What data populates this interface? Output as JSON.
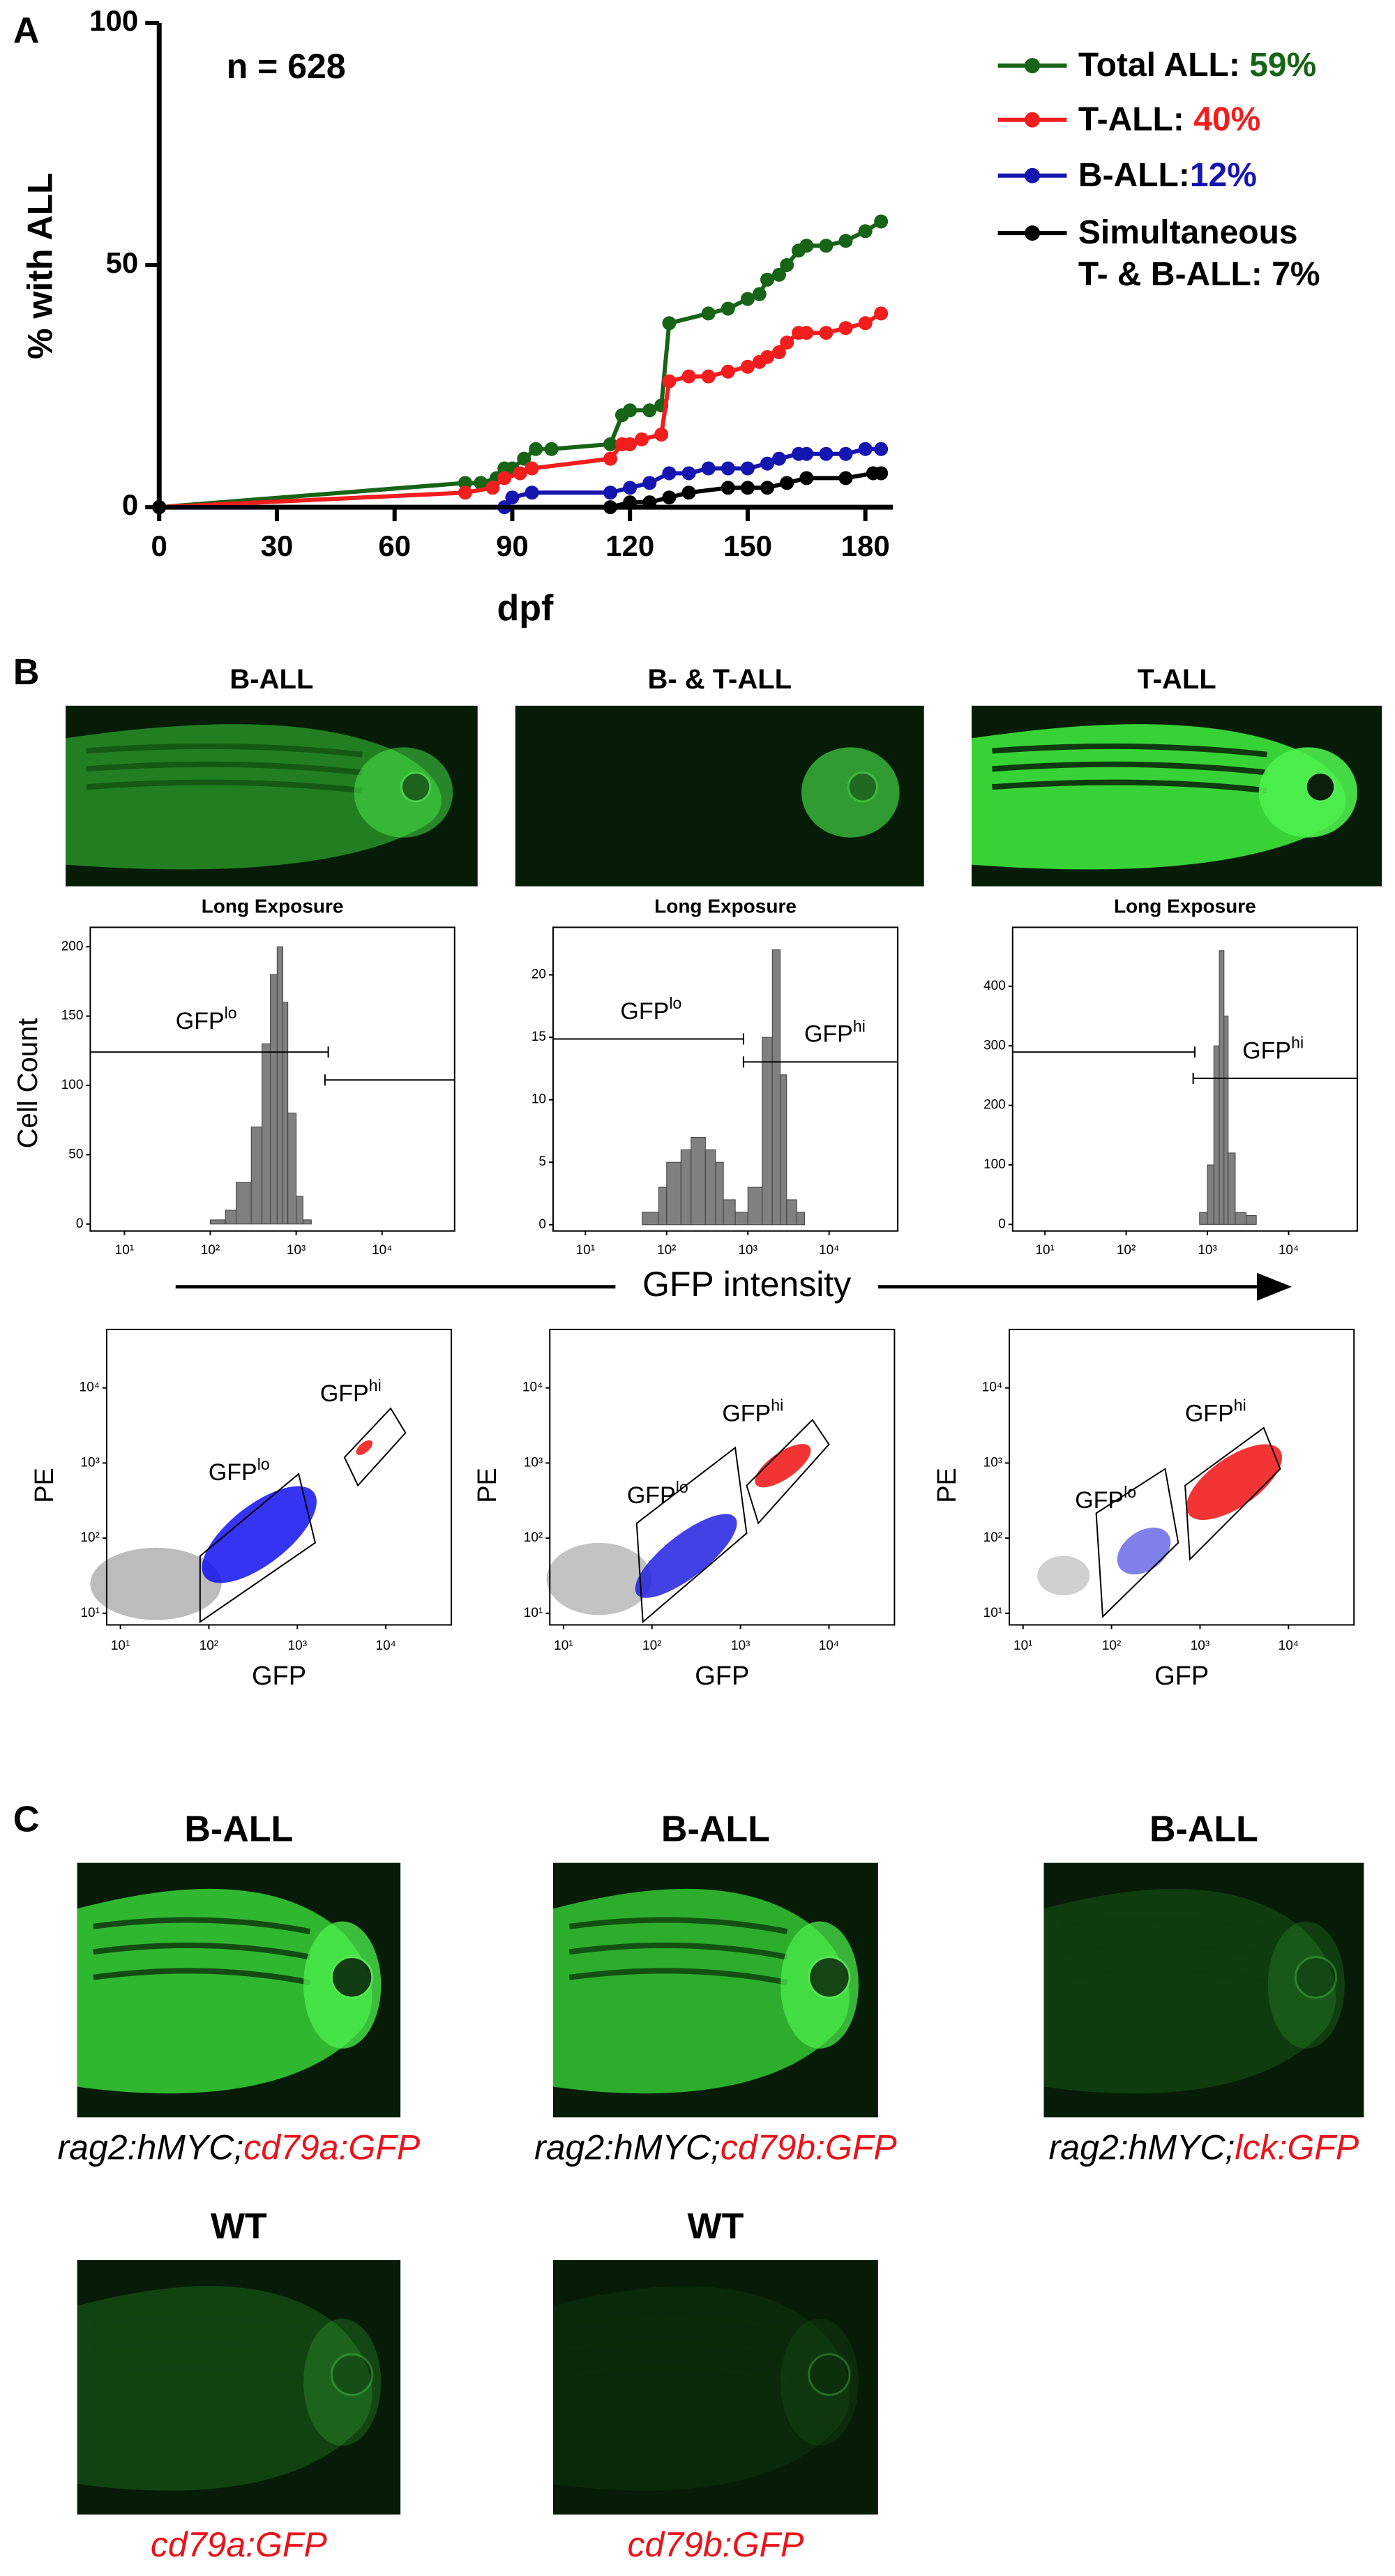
{
  "panel_labels": [
    "A",
    "B",
    "C"
  ],
  "chart_data": [
    {
      "type": "line",
      "annotation": "n = 628",
      "xlabel": "dpf",
      "ylabel": "% with ALL",
      "xlim": [
        0,
        187
      ],
      "xticks": [
        0,
        30,
        60,
        90,
        120,
        150,
        180
      ],
      "ylim": [
        0,
        100
      ],
      "yticks": [
        0,
        50,
        100
      ],
      "series": [
        {
          "name": "Total ALL:",
          "legend_value": "59%",
          "color": "#176417",
          "x": [
            0,
            78,
            82,
            86,
            88,
            90,
            93,
            96,
            100,
            115,
            118,
            120,
            125,
            128,
            130,
            140,
            145,
            150,
            153,
            155,
            158,
            160,
            163,
            165,
            170,
            175,
            180,
            184
          ],
          "values": [
            0,
            5,
            5,
            6,
            8,
            8,
            10,
            12,
            12,
            13,
            19,
            20,
            20,
            21,
            38,
            40,
            41,
            43,
            44,
            47,
            48,
            50,
            53,
            54,
            54,
            55,
            57,
            59
          ]
        },
        {
          "name": "T-ALL:",
          "legend_value": "40%",
          "color": "#f21d1d",
          "x": [
            0,
            78,
            85,
            88,
            92,
            95,
            115,
            118,
            120,
            123,
            128,
            130,
            135,
            140,
            145,
            150,
            153,
            155,
            158,
            160,
            163,
            165,
            170,
            175,
            180,
            184
          ],
          "values": [
            0,
            3,
            4,
            6,
            7,
            8,
            10,
            13,
            13,
            14,
            15,
            26,
            27,
            27,
            28,
            29,
            30,
            31,
            32,
            34,
            36,
            36,
            36,
            37,
            38,
            40
          ]
        },
        {
          "name": "B-ALL:",
          "legend_value": "12%",
          "color": "#1515b0",
          "x": [
            0,
            88,
            90,
            95,
            115,
            120,
            125,
            130,
            135,
            140,
            145,
            150,
            155,
            158,
            163,
            165,
            170,
            175,
            180,
            184
          ],
          "values": [
            0,
            0,
            2,
            3,
            3,
            4,
            5,
            7,
            7,
            8,
            8,
            8,
            9,
            10,
            11,
            11,
            11,
            11,
            12,
            12
          ]
        },
        {
          "name": "Simultaneous T- & B-ALL:",
          "legend_value": "7%",
          "color": "#000000",
          "x": [
            0,
            115,
            120,
            125,
            130,
            135,
            145,
            150,
            155,
            160,
            165,
            175,
            182,
            184
          ],
          "values": [
            0,
            0,
            1,
            1,
            2,
            3,
            4,
            4,
            4,
            5,
            6,
            6,
            7,
            7
          ]
        }
      ]
    },
    {
      "type": "histogram",
      "title": "Long Exposure",
      "ylabel": "Cell Count",
      "color": "#808080",
      "xscale": "log",
      "bins": [
        100,
        150,
        200,
        300,
        400,
        500,
        600,
        700,
        800,
        1000,
        1200,
        1500
      ],
      "values": [
        3,
        10,
        30,
        70,
        130,
        180,
        200,
        160,
        80,
        20,
        3
      ],
      "xlim": [
        4,
        70000
      ],
      "xticks": [
        {
          "value": 10,
          "label": "10¹"
        },
        {
          "value": 100,
          "label": "10²"
        },
        {
          "value": 1000,
          "label": "10³"
        },
        {
          "value": 10000,
          "label": "10⁴"
        }
      ],
      "ylim": [
        -5,
        214
      ],
      "yticks": [
        0,
        50,
        100,
        150,
        200
      ],
      "gates": [
        {
          "base": "GFP",
          "sup": "lo"
        }
      ]
    },
    {
      "type": "histogram",
      "title": "Long Exposure",
      "color": "#808080",
      "xscale": "log",
      "bins": [
        50,
        80,
        100,
        150,
        200,
        300,
        400,
        500,
        700,
        1000,
        1500,
        2000,
        2500,
        3000,
        4000,
        5000
      ],
      "values": [
        1,
        3,
        5,
        6,
        7,
        6,
        5,
        2,
        1,
        3,
        15,
        22,
        12,
        2,
        1
      ],
      "xlim": [
        4,
        70000
      ],
      "xticks": [
        {
          "value": 10,
          "label": "10¹"
        },
        {
          "value": 100,
          "label": "10²"
        },
        {
          "value": 1000,
          "label": "10³"
        },
        {
          "value": 10000,
          "label": "10⁴"
        }
      ],
      "ylim": [
        -0.5,
        23.8
      ],
      "yticks": [
        0,
        5,
        10,
        15,
        20
      ],
      "gates": [
        {
          "base": "GFP",
          "sup": "lo"
        },
        {
          "base": "GFP",
          "sup": "hi"
        }
      ]
    },
    {
      "type": "histogram",
      "title": "Long Exposure",
      "color": "#808080",
      "xscale": "log",
      "bins": [
        800,
        1000,
        1200,
        1400,
        1600,
        1800,
        2200,
        3000,
        4000
      ],
      "values": [
        20,
        100,
        300,
        460,
        350,
        120,
        20,
        15
      ],
      "xlim": [
        4,
        70000
      ],
      "xticks": [
        {
          "value": 10,
          "label": "10¹"
        },
        {
          "value": 100,
          "label": "10²"
        },
        {
          "value": 1000,
          "label": "10³"
        },
        {
          "value": 10000,
          "label": "10⁴"
        }
      ],
      "ylim": [
        -11,
        499
      ],
      "yticks": [
        0,
        100,
        200,
        300,
        400
      ],
      "gates": [
        {
          "base": "GFP",
          "sup": "hi"
        }
      ]
    },
    {
      "type": "scatter",
      "xlabel": "GFP",
      "ylabel": "PE",
      "xscale": "log",
      "yscale": "log",
      "xlim": [
        7,
        55000
      ],
      "ylim": [
        7,
        60000
      ],
      "xticks": [
        {
          "value": 10,
          "label": "10¹"
        },
        {
          "value": 100,
          "label": "10²"
        },
        {
          "value": 1000,
          "label": "10³"
        },
        {
          "value": 10000,
          "label": "10⁴"
        }
      ],
      "yticks": [
        {
          "value": 10,
          "label": "10¹"
        },
        {
          "value": 100,
          "label": "10²"
        },
        {
          "value": 1000,
          "label": "10³"
        },
        {
          "value": 10000,
          "label": "10⁴"
        }
      ],
      "gates": [
        {
          "base": "GFP",
          "sup": "lo"
        },
        {
          "base": "GFP",
          "sup": "hi"
        }
      ]
    },
    {
      "type": "scatter",
      "xlabel": "GFP",
      "ylabel": "PE",
      "xscale": "log",
      "yscale": "log",
      "xlim": [
        7,
        55000
      ],
      "ylim": [
        7,
        60000
      ],
      "xticks": [
        {
          "value": 10,
          "label": "10¹"
        },
        {
          "value": 100,
          "label": "10²"
        },
        {
          "value": 1000,
          "label": "10³"
        },
        {
          "value": 10000,
          "label": "10⁴"
        }
      ],
      "yticks": [
        {
          "value": 10,
          "label": "10¹"
        },
        {
          "value": 100,
          "label": "10²"
        },
        {
          "value": 1000,
          "label": "10³"
        },
        {
          "value": 10000,
          "label": "10⁴"
        }
      ],
      "gates": [
        {
          "base": "GFP",
          "sup": "lo"
        },
        {
          "base": "GFP",
          "sup": "hi"
        }
      ]
    },
    {
      "type": "scatter",
      "xlabel": "GFP",
      "ylabel": "PE",
      "xscale": "log",
      "yscale": "log",
      "xlim": [
        7,
        55000
      ],
      "ylim": [
        7,
        60000
      ],
      "xticks": [
        {
          "value": 10,
          "label": "10¹"
        },
        {
          "value": 100,
          "label": "10²"
        },
        {
          "value": 1000,
          "label": "10³"
        },
        {
          "value": 10000,
          "label": "10⁴"
        }
      ],
      "yticks": [
        {
          "value": 10,
          "label": "10¹"
        },
        {
          "value": 100,
          "label": "10²"
        },
        {
          "value": 1000,
          "label": "10³"
        },
        {
          "value": 10000,
          "label": "10⁴"
        }
      ],
      "gates": [
        {
          "base": "GFP",
          "sup": "lo"
        },
        {
          "base": "GFP",
          "sup": "hi"
        }
      ]
    }
  ],
  "panel_b": {
    "titles": [
      "B-ALL",
      "B- & T-ALL",
      "T-ALL"
    ],
    "xlabel": "GFP intensity"
  },
  "panel_c": {
    "images": [
      {
        "title": "B-ALL",
        "caption": [
          {
            "text": "rag2:hMYC;",
            "color": "#000000"
          },
          {
            "text": "cd79a:GFP",
            "color": "#e8141b"
          }
        ]
      },
      {
        "title": "B-ALL",
        "caption": [
          {
            "text": "rag2:hMYC;",
            "color": "#000000"
          },
          {
            "text": "cd79b:GFP",
            "color": "#e8141b"
          }
        ]
      },
      {
        "title": "B-ALL",
        "caption": [
          {
            "text": "rag2:hMYC;",
            "color": "#000000"
          },
          {
            "text": "lck:GFP",
            "color": "#e8141b"
          }
        ]
      },
      {
        "title": "WT",
        "caption": [
          {
            "text": "cd79a:GFP",
            "color": "#e8141b"
          }
        ]
      },
      {
        "title": "WT",
        "caption": [
          {
            "text": "cd79b:GFP",
            "color": "#e8141b"
          }
        ]
      }
    ]
  }
}
